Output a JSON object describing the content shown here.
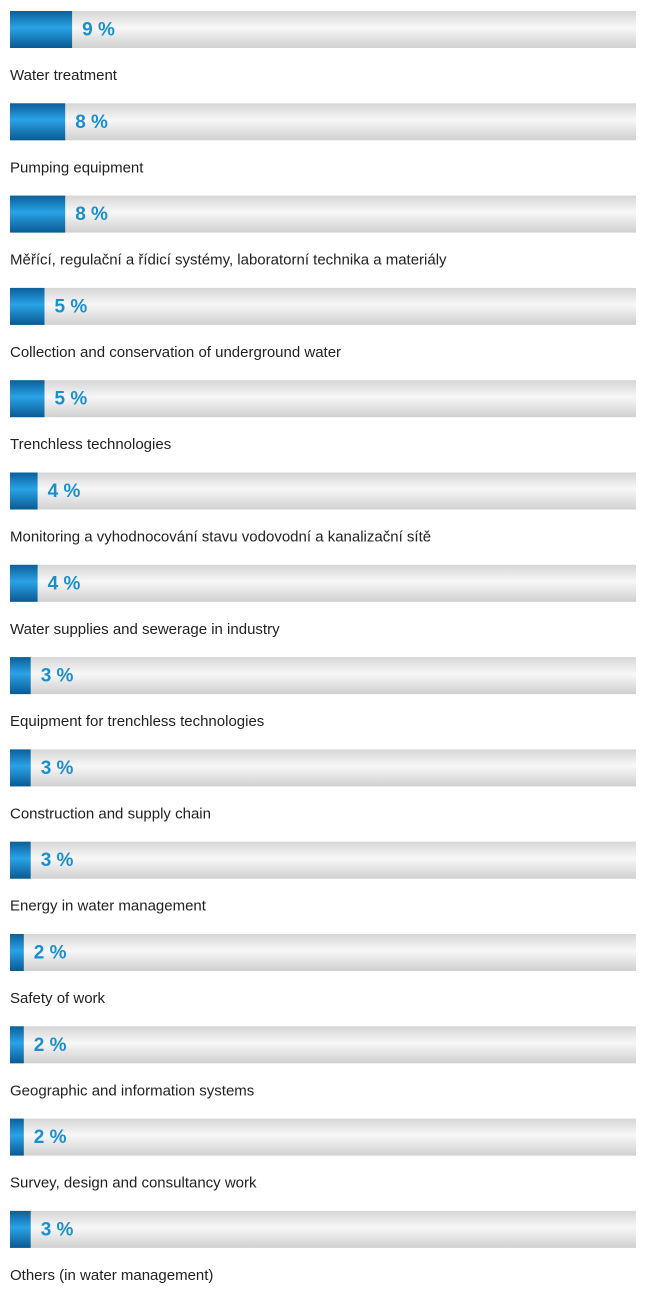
{
  "chart_data": {
    "type": "bar",
    "orientation": "horizontal",
    "categories": [
      "Water treatment",
      "Pumping equipment",
      "Měřící, regulační a řídicí systémy, laboratorní technika a materiály",
      "Collection and conservation of underground water",
      "Trenchless technologies",
      "Monitoring a vyhodnocování stavu vodovodní a kanalizační sítě",
      "Water supplies and sewerage in industry",
      "Equipment for trenchless technologies",
      "Construction and supply chain",
      "Energy in water management",
      "Safety of work",
      "Geographic and information systems",
      "Survey, design and consultancy work",
      "Others (in water management)"
    ],
    "values": [
      9,
      8,
      8,
      5,
      5,
      4,
      4,
      3,
      3,
      3,
      2,
      2,
      2,
      3
    ],
    "value_labels": [
      "9 %",
      "8 %",
      "8 %",
      "5 %",
      "5 %",
      "4 %",
      "4 %",
      "3 %",
      "3 %",
      "3 %",
      "2 %",
      "2 %",
      "2 %",
      "3 %"
    ],
    "color": "#1a8fd0"
  }
}
